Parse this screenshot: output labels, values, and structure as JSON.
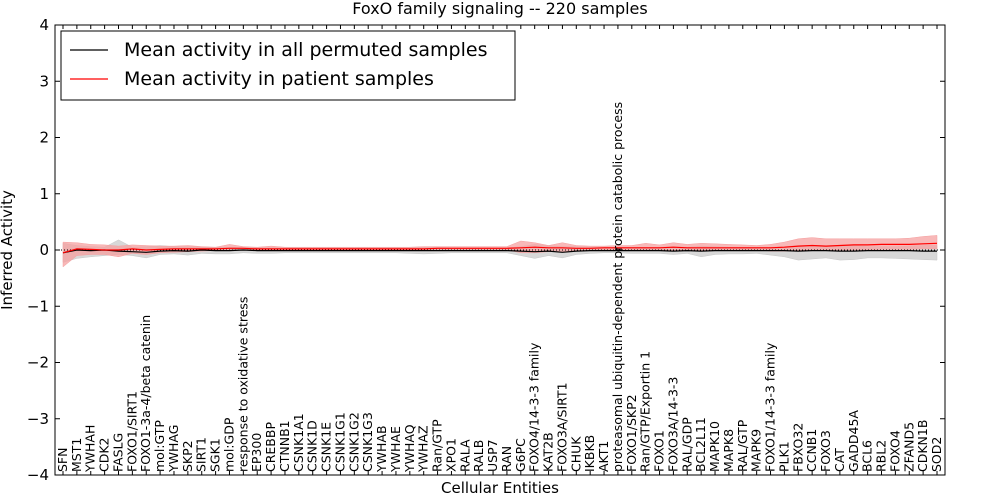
{
  "chart_data": {
    "type": "line",
    "title": "FoxO family signaling -- 220 samples",
    "xlabel": "Cellular Entities",
    "ylabel": "Inferred Activity",
    "ylim": [
      -4,
      4
    ],
    "yticks": [
      -4,
      -3,
      -2,
      -1,
      0,
      1,
      2,
      3,
      4
    ],
    "ytick_labels": [
      "−4",
      "−3",
      "−2",
      "−1",
      "0",
      "1",
      "2",
      "3",
      "4"
    ],
    "legend_position": "top-left",
    "categories": [
      "SFN",
      "MST1",
      "YWHAH",
      "CDK2",
      "FASLG",
      "FOXO1/SIRT1",
      "FOXO1-3a-4/beta catenin",
      "mol:GTP",
      "YWHAG",
      "SKP2",
      "SIRT1",
      "SGK1",
      "mol:GDP",
      "response to oxidative stress",
      "EP300",
      "CREBBP",
      "CTNNB1",
      "CSNK1A1",
      "CSNK1D",
      "CSNK1E",
      "CSNK1G1",
      "CSNK1G2",
      "CSNK1G3",
      "YWHAB",
      "YWHAE",
      "YWHAQ",
      "YWHAZ",
      "Ran/GTP",
      "XPO1",
      "RALA",
      "RALB",
      "USP7",
      "RAN",
      "G6PC",
      "FOXO4/14-3-3 family",
      "KAT2B",
      "FOXO3A/SIRT1",
      "CHUK",
      "IKBKB",
      "AKT1",
      "proteasomal ubiquitin-dependent protein catabolic process",
      "FOXO1/SKP2",
      "Ran/GTP/Exportin 1",
      "FOXO1",
      "FOXO3A/14-3-3",
      "RAL/GDP",
      "BCL2L11",
      "MAPK10",
      "MAPK8",
      "RAL/GTP",
      "MAPK9",
      "FOXO1/14-3-3 family",
      "PLK1",
      "FBXO32",
      "CCNB1",
      "FOXO3",
      "CAT",
      "GADD45A",
      "BCL6",
      "RBL2",
      "FOXO4",
      "ZFAND5",
      "CDKN1B",
      "SOD2"
    ],
    "series": [
      {
        "name": "Mean activity in all permuted samples",
        "color": "#000000",
        "band_color": "#c8c8c8",
        "values": [
          -0.05,
          0.0,
          -0.01,
          0.0,
          -0.02,
          -0.03,
          -0.04,
          -0.02,
          -0.01,
          -0.02,
          0.0,
          -0.01,
          -0.01,
          0.0,
          -0.01,
          -0.01,
          -0.01,
          -0.01,
          -0.01,
          -0.01,
          -0.01,
          -0.01,
          -0.01,
          -0.01,
          -0.01,
          -0.01,
          -0.01,
          -0.01,
          -0.01,
          -0.01,
          -0.01,
          -0.01,
          -0.01,
          -0.02,
          -0.03,
          -0.02,
          -0.04,
          -0.02,
          -0.01,
          -0.01,
          -0.01,
          -0.01,
          -0.01,
          -0.01,
          -0.02,
          -0.01,
          -0.02,
          -0.01,
          -0.01,
          -0.01,
          -0.01,
          -0.01,
          -0.01,
          -0.02,
          -0.01,
          -0.01,
          -0.02,
          -0.02,
          -0.01,
          -0.01,
          -0.01,
          -0.01,
          -0.02,
          -0.02
        ],
        "lower": [
          -0.22,
          -0.15,
          -0.12,
          -0.1,
          -0.08,
          -0.1,
          -0.14,
          -0.08,
          -0.07,
          -0.09,
          -0.06,
          -0.07,
          -0.07,
          -0.05,
          -0.06,
          -0.06,
          -0.05,
          -0.05,
          -0.05,
          -0.05,
          -0.05,
          -0.05,
          -0.05,
          -0.05,
          -0.05,
          -0.06,
          -0.07,
          -0.06,
          -0.05,
          -0.05,
          -0.05,
          -0.05,
          -0.05,
          -0.1,
          -0.15,
          -0.1,
          -0.14,
          -0.08,
          -0.06,
          -0.05,
          -0.05,
          -0.06,
          -0.06,
          -0.06,
          -0.08,
          -0.06,
          -0.12,
          -0.08,
          -0.07,
          -0.07,
          -0.06,
          -0.09,
          -0.12,
          -0.18,
          -0.16,
          -0.14,
          -0.18,
          -0.17,
          -0.14,
          -0.14,
          -0.15,
          -0.16,
          -0.17,
          -0.18
        ],
        "upper": [
          0.12,
          0.08,
          0.06,
          0.05,
          0.18,
          0.05,
          0.06,
          0.08,
          0.06,
          0.06,
          0.05,
          0.05,
          0.05,
          0.04,
          0.04,
          0.04,
          0.04,
          0.04,
          0.04,
          0.04,
          0.04,
          0.04,
          0.04,
          0.04,
          0.04,
          0.05,
          0.05,
          0.05,
          0.04,
          0.04,
          0.04,
          0.04,
          0.04,
          0.06,
          0.1,
          0.08,
          0.06,
          0.06,
          0.05,
          0.05,
          0.05,
          0.05,
          0.05,
          0.05,
          0.06,
          0.05,
          0.07,
          0.06,
          0.05,
          0.05,
          0.05,
          0.05,
          0.06,
          0.08,
          0.07,
          0.06,
          0.08,
          0.08,
          0.06,
          0.06,
          0.06,
          0.07,
          0.08,
          0.08
        ]
      },
      {
        "name": "Mean activity in patient samples",
        "color": "#ff0000",
        "band_color": "#f5a0a0",
        "values": [
          -0.05,
          0.02,
          0.01,
          0.0,
          0.0,
          0.02,
          0.0,
          0.01,
          0.02,
          0.02,
          0.02,
          0.02,
          0.03,
          0.03,
          0.02,
          0.02,
          0.02,
          0.02,
          0.02,
          0.02,
          0.02,
          0.02,
          0.02,
          0.02,
          0.02,
          0.02,
          0.02,
          0.03,
          0.03,
          0.03,
          0.03,
          0.03,
          0.03,
          0.04,
          0.05,
          0.04,
          0.04,
          0.03,
          0.03,
          0.04,
          0.04,
          0.04,
          0.04,
          0.04,
          0.05,
          0.04,
          0.04,
          0.04,
          0.04,
          0.04,
          0.04,
          0.04,
          0.05,
          0.07,
          0.08,
          0.07,
          0.08,
          0.09,
          0.09,
          0.1,
          0.1,
          0.1,
          0.11,
          0.12
        ],
        "lower": [
          -0.3,
          -0.1,
          -0.08,
          -0.08,
          -0.12,
          -0.06,
          -0.08,
          -0.05,
          -0.04,
          -0.03,
          -0.02,
          -0.01,
          0.0,
          0.0,
          -0.01,
          -0.01,
          -0.01,
          -0.01,
          -0.01,
          -0.01,
          -0.01,
          -0.01,
          -0.01,
          -0.01,
          -0.01,
          -0.01,
          -0.01,
          0.0,
          0.0,
          0.0,
          0.0,
          0.0,
          0.0,
          -0.05,
          -0.05,
          -0.03,
          -0.03,
          -0.01,
          -0.01,
          0.0,
          0.0,
          -0.01,
          -0.01,
          -0.01,
          -0.01,
          -0.01,
          -0.01,
          0.0,
          0.0,
          0.0,
          0.0,
          -0.02,
          -0.02,
          -0.01,
          0.0,
          0.0,
          0.0,
          0.0,
          0.0,
          0.01,
          0.01,
          0.01,
          0.02,
          0.02
        ],
        "upper": [
          0.14,
          0.13,
          0.1,
          0.09,
          0.07,
          0.09,
          0.08,
          0.07,
          0.07,
          0.08,
          0.06,
          0.05,
          0.1,
          0.06,
          0.05,
          0.07,
          0.05,
          0.05,
          0.05,
          0.05,
          0.05,
          0.05,
          0.05,
          0.05,
          0.05,
          0.05,
          0.06,
          0.06,
          0.06,
          0.06,
          0.06,
          0.06,
          0.06,
          0.16,
          0.13,
          0.08,
          0.13,
          0.08,
          0.07,
          0.07,
          0.08,
          0.08,
          0.12,
          0.09,
          0.13,
          0.1,
          0.12,
          0.11,
          0.1,
          0.09,
          0.08,
          0.1,
          0.14,
          0.2,
          0.22,
          0.2,
          0.2,
          0.2,
          0.2,
          0.2,
          0.2,
          0.21,
          0.24,
          0.26
        ]
      }
    ]
  }
}
